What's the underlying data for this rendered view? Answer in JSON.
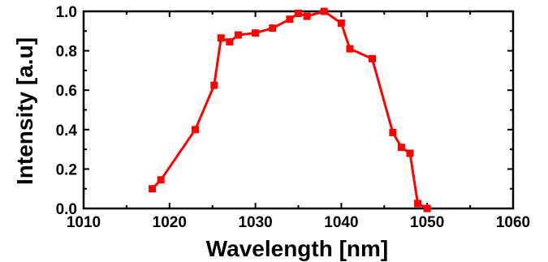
{
  "chart_data": {
    "type": "line",
    "xlabel": "Wavelength  [nm]",
    "ylabel": "Intensity  [a.u]",
    "xlim": [
      1010,
      1060
    ],
    "ylim": [
      0.0,
      1.0
    ],
    "xticks": [
      1010,
      1020,
      1030,
      1040,
      1050,
      1060
    ],
    "yticks": [
      0.0,
      0.2,
      0.4,
      0.6,
      0.8,
      1.0
    ],
    "xtick_labels": [
      "1010",
      "1020",
      "1030",
      "1040",
      "1050",
      "1060"
    ],
    "ytick_labels": [
      "0.0",
      "0.2",
      "0.4",
      "0.6",
      "0.8",
      "1.0"
    ],
    "grid": false,
    "series": [
      {
        "color": "#ff0000",
        "marker": "square",
        "x": [
          1018,
          1019,
          1023,
          1025.2,
          1026,
          1027,
          1028,
          1030,
          1032,
          1034,
          1035,
          1036,
          1038,
          1040,
          1041,
          1043.6,
          1046,
          1047,
          1048,
          1048.9,
          1050
        ],
        "y": [
          0.1,
          0.145,
          0.4,
          0.625,
          0.865,
          0.845,
          0.88,
          0.89,
          0.915,
          0.96,
          0.99,
          0.975,
          1.0,
          0.94,
          0.81,
          0.76,
          0.385,
          0.31,
          0.28,
          0.025,
          0.0
        ]
      }
    ]
  }
}
